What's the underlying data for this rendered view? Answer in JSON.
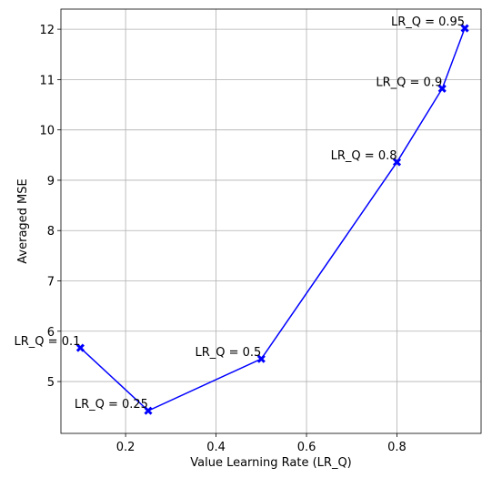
{
  "chart_data": {
    "type": "line",
    "xlabel": "Value Learning Rate (LR_Q)",
    "ylabel": "Averaged MSE",
    "x": [
      0.1,
      0.25,
      0.5,
      0.8,
      0.9,
      0.95
    ],
    "series": [
      {
        "color": "#0000ff",
        "values": [
          5.67,
          4.42,
          5.45,
          9.36,
          10.82,
          12.02
        ]
      }
    ],
    "annotations": [
      "LR_Q = 0.1",
      "LR_Q = 0.25",
      "LR_Q = 0.5",
      "LR_Q = 0.8",
      "LR_Q = 0.9",
      "LR_Q = 0.95"
    ],
    "xlim": [
      0.057,
      0.986
    ],
    "ylim": [
      3.97,
      12.4
    ],
    "xticks": [
      0.2,
      0.4,
      0.6,
      0.8
    ],
    "yticks": [
      5,
      6,
      7,
      8,
      9,
      10,
      11,
      12
    ],
    "grid": true
  }
}
